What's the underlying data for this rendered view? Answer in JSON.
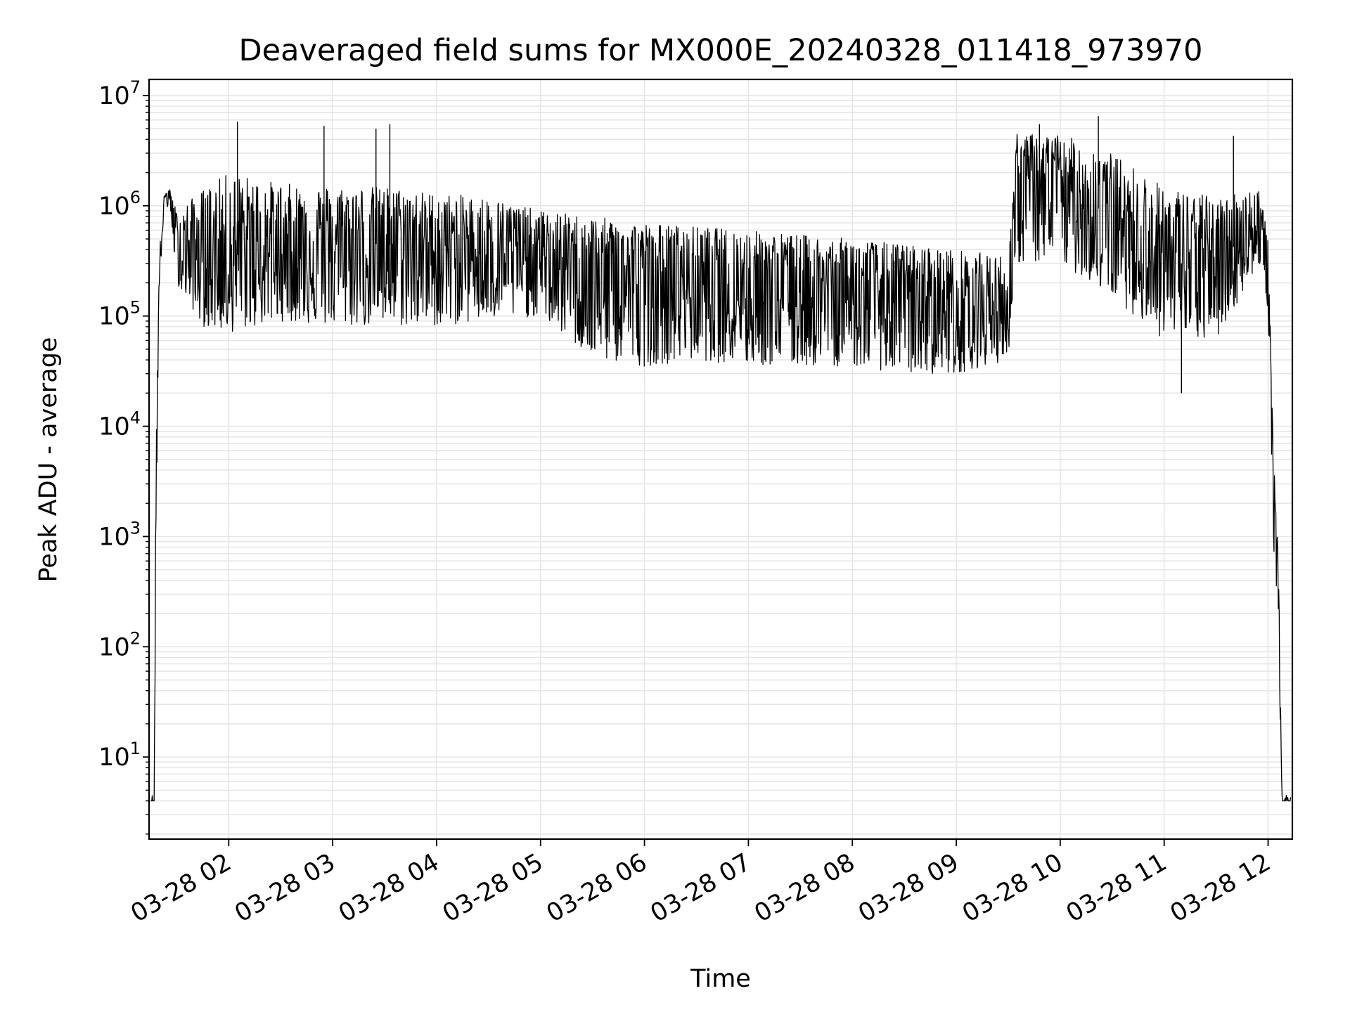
{
  "chart_data": {
    "type": "line",
    "title": "Deaveraged field sums for MX000E_20240328_011418_973970",
    "xlabel": "Time",
    "ylabel": "Peak ADU - average",
    "yscale": "log",
    "ylim": [
      1.8,
      14000000
    ],
    "xlim": [
      "2024-03-28 01:14",
      "2024-03-28 12:14"
    ],
    "grid": true,
    "grid_minor": true,
    "line_color": "#000000",
    "grid_color": "#e6e6e6",
    "x_ticks": [
      "03-28 02",
      "03-28 03",
      "03-28 04",
      "03-28 05",
      "03-28 06",
      "03-28 07",
      "03-28 08",
      "03-28 09",
      "03-28 10",
      "03-28 11",
      "03-28 12"
    ],
    "y_ticks": [
      {
        "base": "10",
        "exp": "1",
        "value": 10
      },
      {
        "base": "10",
        "exp": "2",
        "value": 100
      },
      {
        "base": "10",
        "exp": "3",
        "value": 1000
      },
      {
        "base": "10",
        "exp": "4",
        "value": 10000
      },
      {
        "base": "10",
        "exp": "5",
        "value": 100000
      },
      {
        "base": "10",
        "exp": "6",
        "value": 1000000
      },
      {
        "base": "10",
        "exp": "7",
        "value": 10000000
      }
    ],
    "series": [
      {
        "style": "noisy envelope",
        "envelope": [
          {
            "t": "2024-03-28 01:15",
            "low": 4,
            "mid": 4,
            "high": 4.5
          },
          {
            "t": "2024-03-28 01:17",
            "low": 4,
            "mid": 4,
            "high": 4.5
          },
          {
            "t": "2024-03-28 01:18",
            "low": 1000,
            "mid": 2000,
            "high": 13000
          },
          {
            "t": "2024-03-28 01:20",
            "low": 200000,
            "mid": 300000,
            "high": 400000
          },
          {
            "t": "2024-03-28 01:23",
            "low": 900000,
            "mid": 1200000,
            "high": 1400000
          },
          {
            "t": "2024-03-28 01:26",
            "low": 1000000,
            "mid": 1300000,
            "high": 1400000
          },
          {
            "t": "2024-03-28 01:30",
            "low": 200000,
            "mid": 400000,
            "high": 900000
          },
          {
            "t": "2024-03-28 01:45",
            "low": 80000,
            "mid": 350000,
            "high": 1400000
          },
          {
            "t": "2024-03-28 02:00",
            "low": 70000,
            "mid": 350000,
            "high": 2000000
          },
          {
            "t": "2024-03-28 02:30",
            "low": 90000,
            "mid": 400000,
            "high": 1600000
          },
          {
            "t": "2024-03-28 03:00",
            "low": 80000,
            "mid": 450000,
            "high": 1500000
          },
          {
            "t": "2024-03-28 03:30",
            "low": 80000,
            "mid": 450000,
            "high": 1500000
          },
          {
            "t": "2024-03-28 04:00",
            "low": 80000,
            "mid": 400000,
            "high": 1300000
          },
          {
            "t": "2024-03-28 04:30",
            "low": 90000,
            "mid": 400000,
            "high": 1200000
          },
          {
            "t": "2024-03-28 05:00",
            "low": 100000,
            "mid": 350000,
            "high": 900000
          },
          {
            "t": "2024-03-28 05:30",
            "low": 40000,
            "mid": 250000,
            "high": 800000
          },
          {
            "t": "2024-03-28 06:00",
            "low": 35000,
            "mid": 220000,
            "high": 700000
          },
          {
            "t": "2024-03-28 06:30",
            "low": 40000,
            "mid": 200000,
            "high": 650000
          },
          {
            "t": "2024-03-28 07:00",
            "low": 35000,
            "mid": 200000,
            "high": 600000
          },
          {
            "t": "2024-03-28 07:30",
            "low": 35000,
            "mid": 180000,
            "high": 550000
          },
          {
            "t": "2024-03-28 08:00",
            "low": 35000,
            "mid": 170000,
            "high": 500000
          },
          {
            "t": "2024-03-28 08:30",
            "low": 30000,
            "mid": 150000,
            "high": 450000
          },
          {
            "t": "2024-03-28 09:00",
            "low": 30000,
            "mid": 120000,
            "high": 400000
          },
          {
            "t": "2024-03-28 09:30",
            "low": 40000,
            "mid": 120000,
            "high": 350000
          },
          {
            "t": "2024-03-28 09:35",
            "low": 300000,
            "mid": 1500000,
            "high": 4500000
          },
          {
            "t": "2024-03-28 10:00",
            "low": 300000,
            "mid": 1500000,
            "high": 4500000
          },
          {
            "t": "2024-03-28 10:30",
            "low": 150000,
            "mid": 800000,
            "high": 3000000
          },
          {
            "t": "2024-03-28 11:00",
            "low": 60000,
            "mid": 300000,
            "high": 1500000
          },
          {
            "t": "2024-03-28 11:30",
            "low": 60000,
            "mid": 300000,
            "high": 1200000
          },
          {
            "t": "2024-03-28 11:55",
            "low": 300000,
            "mid": 700000,
            "high": 1500000
          },
          {
            "t": "2024-03-28 12:00",
            "low": 100000,
            "mid": 300000,
            "high": 500000
          },
          {
            "t": "2024-03-28 12:03",
            "low": 1000,
            "mid": 3000,
            "high": 6000
          },
          {
            "t": "2024-03-28 12:06",
            "low": 100,
            "mid": 400,
            "high": 600
          },
          {
            "t": "2024-03-28 12:08",
            "low": 4,
            "mid": 4,
            "high": 4.5
          },
          {
            "t": "2024-03-28 12:13",
            "low": 4,
            "mid": 4,
            "high": 4.5
          }
        ],
        "spikes": [
          {
            "t": "2024-03-28 02:05",
            "value": 5800000
          },
          {
            "t": "2024-03-28 02:55",
            "value": 5300000
          },
          {
            "t": "2024-03-28 03:25",
            "value": 5000000
          },
          {
            "t": "2024-03-28 03:33",
            "value": 5500000
          },
          {
            "t": "2024-03-28 09:48",
            "value": 5500000
          },
          {
            "t": "2024-03-28 10:22",
            "value": 6500000
          },
          {
            "t": "2024-03-28 11:10",
            "value": 20000
          },
          {
            "t": "2024-03-28 11:40",
            "value": 4300000
          }
        ]
      }
    ]
  }
}
